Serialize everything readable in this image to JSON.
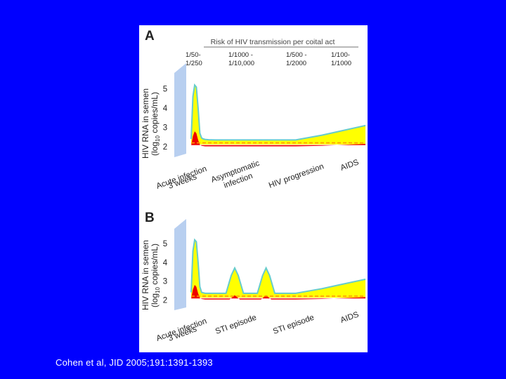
{
  "slide": {
    "background": "#0000ff",
    "citation": "Cohen et al, JID 2005;191:1391-1393"
  },
  "colors": {
    "viral_load_fill": "#ffff00",
    "viral_load_outline": "#66cccc",
    "transmission_fill": "#ee0000",
    "threshold_line": "#ff9900",
    "axis_band": "#b8cff0"
  },
  "chart_data": [
    {
      "type": "area",
      "panel_label": "A",
      "header": "Risk of HIV transmission per coital act",
      "risk_labels": [
        [
          "1/50-",
          "1/250"
        ],
        [
          "1/1000 -",
          "1/10,000"
        ],
        [
          "1/500 -",
          "1/2000"
        ],
        [
          "1/100-",
          "1/1000"
        ]
      ],
      "ylabel_line1": "HIV RNA in semen",
      "ylabel_line2_pre": "(log",
      "ylabel_line2_sub": "10",
      "ylabel_line2_post": " copies/mL)",
      "yticks": [
        "2",
        "3",
        "4",
        "5"
      ],
      "ylim": [
        1.6,
        5.9
      ],
      "x_labels": [
        [
          "Acute infection",
          "3 weeks"
        ],
        [
          "Asymptomatic",
          "infection"
        ],
        [
          "HIV progression"
        ],
        [
          "AIDS"
        ]
      ],
      "series": [
        {
          "role": "viral_load",
          "x": [
            0,
            1,
            2,
            3,
            4,
            5,
            6,
            7,
            8,
            10,
            14,
            30,
            60,
            75,
            85,
            100
          ],
          "values": [
            2.4,
            4.6,
            5.2,
            5.1,
            4.0,
            2.7,
            2.45,
            2.4,
            2.38,
            2.36,
            2.35,
            2.35,
            2.35,
            2.6,
            2.8,
            3.1
          ]
        },
        {
          "role": "transmission",
          "x": [
            0,
            1,
            2,
            3,
            4,
            5,
            6,
            8,
            14,
            60,
            75,
            100
          ],
          "values": [
            2.05,
            2.55,
            2.8,
            2.7,
            2.35,
            2.1,
            2.05,
            2.02,
            2.02,
            2.02,
            2.05,
            2.15
          ]
        },
        {
          "role": "threshold",
          "x": [
            0,
            100
          ],
          "values": [
            2.2,
            2.2
          ]
        }
      ]
    },
    {
      "type": "area",
      "panel_label": "B",
      "ylabel_line1": "HIV RNA in semen",
      "ylabel_line2_pre": "(log",
      "ylabel_line2_sub": "10",
      "ylabel_line2_post": " copies/mL)",
      "yticks": [
        "2",
        "3",
        "4",
        "5"
      ],
      "ylim": [
        1.6,
        5.9
      ],
      "x_labels": [
        [
          "Acute infection",
          "3 weeks"
        ],
        [
          "STI episode"
        ],
        [
          "STI episode"
        ],
        [
          "AIDS"
        ]
      ],
      "series": [
        {
          "role": "viral_load",
          "x": [
            0,
            1,
            2,
            3,
            4,
            5,
            6,
            8,
            20,
            23,
            25,
            27,
            30,
            33,
            38,
            41,
            43,
            45,
            48,
            60,
            75,
            85,
            100
          ],
          "values": [
            2.4,
            4.6,
            5.2,
            5.1,
            4.0,
            2.7,
            2.4,
            2.35,
            2.35,
            3.3,
            3.7,
            3.3,
            2.35,
            2.35,
            2.35,
            3.3,
            3.7,
            3.3,
            2.35,
            2.35,
            2.6,
            2.8,
            3.1
          ]
        },
        {
          "role": "transmission",
          "x": [
            0,
            1,
            2,
            3,
            4,
            5,
            6,
            8,
            22,
            25,
            28,
            40,
            43,
            46,
            60,
            75,
            100
          ],
          "values": [
            2.05,
            2.55,
            2.8,
            2.7,
            2.35,
            2.1,
            2.05,
            2.02,
            2.02,
            2.25,
            2.02,
            2.02,
            2.25,
            2.02,
            2.02,
            2.05,
            2.15
          ]
        },
        {
          "role": "threshold",
          "x": [
            0,
            100
          ],
          "values": [
            2.2,
            2.2
          ]
        }
      ]
    }
  ]
}
